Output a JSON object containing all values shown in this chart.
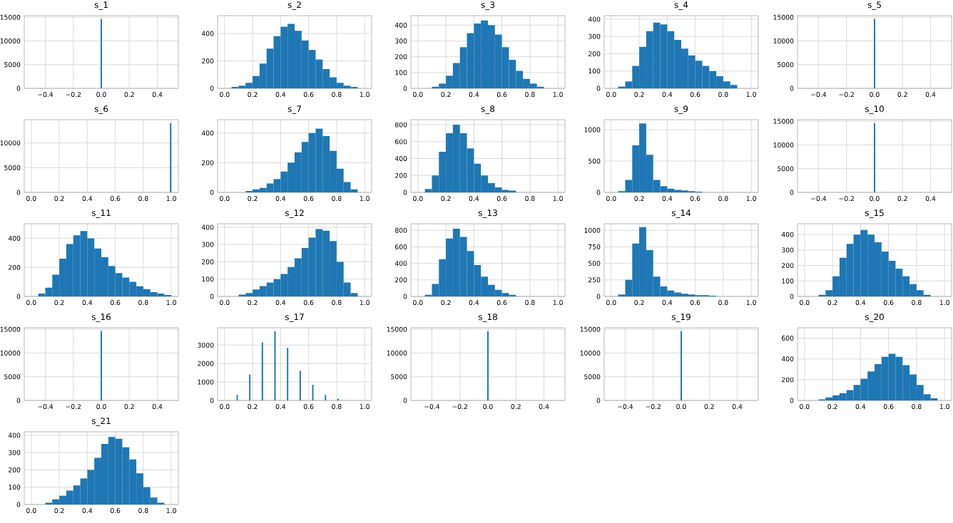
{
  "chart_data": [
    {
      "type": "histogram",
      "title": "s_1",
      "bins": [
        -0.005,
        0.005
      ],
      "values": [
        14600
      ],
      "color": "#1f77b4",
      "xlim": [
        -0.55,
        0.55
      ],
      "xticks": [
        {
          "value": -0.4,
          "label": "−0.4"
        },
        {
          "value": -0.2,
          "label": "−0.2"
        },
        {
          "value": 0,
          "label": "0.0"
        },
        {
          "value": 0.2,
          "label": "0.2"
        },
        {
          "value": 0.4,
          "label": "0.4"
        }
      ],
      "ylim": [
        0,
        15330
      ],
      "yticks": [
        0,
        5000,
        10000,
        15000
      ],
      "grid": true
    },
    {
      "type": "histogram",
      "title": "s_2",
      "bins": [
        0,
        0.05,
        0.1,
        0.15,
        0.2,
        0.25,
        0.3,
        0.35,
        0.4,
        0.45,
        0.5,
        0.55,
        0.6,
        0.65,
        0.7,
        0.75,
        0.8,
        0.85,
        0.9,
        0.95,
        1
      ],
      "values": [
        0,
        10,
        20,
        40,
        90,
        180,
        290,
        380,
        450,
        470,
        420,
        350,
        280,
        210,
        140,
        80,
        40,
        20,
        10,
        0
      ],
      "color": "#1f77b4",
      "xlim": [
        -0.05,
        1.05
      ],
      "xticks": [
        {
          "value": 0,
          "label": "0.0"
        },
        {
          "value": 0.2,
          "label": "0.2"
        },
        {
          "value": 0.4,
          "label": "0.4"
        },
        {
          "value": 0.6,
          "label": "0.6"
        },
        {
          "value": 0.8,
          "label": "0.8"
        },
        {
          "value": 1,
          "label": "1.0"
        }
      ],
      "ylim": [
        0,
        530
      ],
      "yticks": [
        0,
        200,
        400
      ],
      "grid": true
    },
    {
      "type": "histogram",
      "title": "s_3",
      "bins": [
        0,
        0.05,
        0.1,
        0.15,
        0.2,
        0.25,
        0.3,
        0.35,
        0.4,
        0.45,
        0.5,
        0.55,
        0.6,
        0.65,
        0.7,
        0.75,
        0.8,
        0.85,
        0.9,
        0.95,
        1
      ],
      "values": [
        0,
        0,
        10,
        30,
        80,
        160,
        260,
        350,
        410,
        430,
        400,
        340,
        260,
        180,
        110,
        60,
        30,
        10,
        0,
        0
      ],
      "color": "#1f77b4",
      "xlim": [
        -0.05,
        1.05
      ],
      "xticks": [
        {
          "value": 0,
          "label": "0.0"
        },
        {
          "value": 0.2,
          "label": "0.2"
        },
        {
          "value": 0.4,
          "label": "0.4"
        },
        {
          "value": 0.6,
          "label": "0.6"
        },
        {
          "value": 0.8,
          "label": "0.8"
        },
        {
          "value": 1,
          "label": "1.0"
        }
      ],
      "ylim": [
        0,
        460
      ],
      "yticks": [
        0,
        100,
        200,
        300,
        400
      ],
      "grid": true
    },
    {
      "type": "histogram",
      "title": "s_4",
      "bins": [
        0,
        0.05,
        0.1,
        0.15,
        0.2,
        0.25,
        0.3,
        0.35,
        0.4,
        0.45,
        0.5,
        0.55,
        0.6,
        0.65,
        0.7,
        0.75,
        0.8,
        0.85,
        0.9,
        0.95,
        1
      ],
      "values": [
        0,
        10,
        40,
        130,
        240,
        330,
        380,
        370,
        330,
        280,
        230,
        190,
        160,
        130,
        100,
        70,
        40,
        20,
        0,
        0
      ],
      "color": "#1f77b4",
      "xlim": [
        -0.05,
        1.05
      ],
      "xticks": [
        {
          "value": 0,
          "label": "0.0"
        },
        {
          "value": 0.2,
          "label": "0.2"
        },
        {
          "value": 0.4,
          "label": "0.4"
        },
        {
          "value": 0.6,
          "label": "0.6"
        },
        {
          "value": 0.8,
          "label": "0.8"
        },
        {
          "value": 1,
          "label": "1.0"
        }
      ],
      "ylim": [
        0,
        420
      ],
      "yticks": [
        0,
        100,
        200,
        300,
        400
      ],
      "grid": true
    },
    {
      "type": "histogram",
      "title": "s_5",
      "bins": [
        -0.005,
        0.005
      ],
      "values": [
        14600
      ],
      "color": "#1f77b4",
      "xlim": [
        -0.55,
        0.55
      ],
      "xticks": [
        {
          "value": -0.4,
          "label": "−0.4"
        },
        {
          "value": -0.2,
          "label": "−0.2"
        },
        {
          "value": 0,
          "label": "0.0"
        },
        {
          "value": 0.2,
          "label": "0.2"
        },
        {
          "value": 0.4,
          "label": "0.4"
        }
      ],
      "ylim": [
        0,
        15330
      ],
      "yticks": [
        0,
        5000,
        10000,
        15000
      ],
      "grid": true
    },
    {
      "type": "histogram",
      "title": "s_6",
      "bins": [
        0.99,
        1
      ],
      "values": [
        14000
      ],
      "color": "#1f77b4",
      "xlim": [
        -0.05,
        1.05
      ],
      "xticks": [
        {
          "value": 0,
          "label": "0.0"
        },
        {
          "value": 0.2,
          "label": "0.2"
        },
        {
          "value": 0.4,
          "label": "0.4"
        },
        {
          "value": 0.6,
          "label": "0.6"
        },
        {
          "value": 0.8,
          "label": "0.8"
        },
        {
          "value": 1,
          "label": "1.0"
        }
      ],
      "ylim": [
        0,
        14700
      ],
      "yticks": [
        0,
        5000,
        10000
      ],
      "grid": true
    },
    {
      "type": "histogram",
      "title": "s_7",
      "bins": [
        0,
        0.05,
        0.1,
        0.15,
        0.2,
        0.25,
        0.3,
        0.35,
        0.4,
        0.45,
        0.5,
        0.55,
        0.6,
        0.65,
        0.7,
        0.75,
        0.8,
        0.85,
        0.9,
        0.95,
        1
      ],
      "values": [
        0,
        0,
        0,
        10,
        20,
        30,
        60,
        90,
        140,
        200,
        270,
        340,
        400,
        430,
        380,
        280,
        160,
        70,
        20,
        0
      ],
      "color": "#1f77b4",
      "xlim": [
        -0.05,
        1.05
      ],
      "xticks": [
        {
          "value": 0,
          "label": "0.0"
        },
        {
          "value": 0.2,
          "label": "0.2"
        },
        {
          "value": 0.4,
          "label": "0.4"
        },
        {
          "value": 0.6,
          "label": "0.6"
        },
        {
          "value": 0.8,
          "label": "0.8"
        },
        {
          "value": 1,
          "label": "1.0"
        }
      ],
      "ylim": [
        0,
        490
      ],
      "yticks": [
        0,
        200,
        400
      ],
      "grid": true
    },
    {
      "type": "histogram",
      "title": "s_8",
      "bins": [
        0,
        0.05,
        0.1,
        0.15,
        0.2,
        0.25,
        0.3,
        0.35,
        0.4,
        0.45,
        0.5,
        0.55,
        0.6,
        0.65,
        0.7,
        0.75,
        0.8,
        0.85,
        0.9,
        0.95,
        1
      ],
      "values": [
        0,
        40,
        200,
        480,
        700,
        800,
        700,
        520,
        340,
        200,
        110,
        60,
        30,
        20,
        0,
        0,
        0,
        0,
        0,
        0
      ],
      "color": "#1f77b4",
      "xlim": [
        -0.05,
        1.05
      ],
      "xticks": [
        {
          "value": 0,
          "label": "0.0"
        },
        {
          "value": 0.2,
          "label": "0.2"
        },
        {
          "value": 0.4,
          "label": "0.4"
        },
        {
          "value": 0.6,
          "label": "0.6"
        },
        {
          "value": 0.8,
          "label": "0.8"
        },
        {
          "value": 1,
          "label": "1.0"
        }
      ],
      "ylim": [
        0,
        860
      ],
      "yticks": [
        0,
        200,
        400,
        600,
        800
      ],
      "grid": true
    },
    {
      "type": "histogram",
      "title": "s_9",
      "bins": [
        0,
        0.05,
        0.1,
        0.15,
        0.2,
        0.25,
        0.3,
        0.35,
        0.4,
        0.45,
        0.5,
        0.55,
        0.6,
        0.65,
        0.7,
        0.75,
        0.8,
        0.85,
        0.9,
        0.95,
        1
      ],
      "values": [
        0,
        20,
        200,
        750,
        1100,
        600,
        200,
        100,
        60,
        40,
        30,
        20,
        10,
        0,
        0,
        0,
        0,
        0,
        0,
        0
      ],
      "color": "#1f77b4",
      "xlim": [
        -0.05,
        1.05
      ],
      "xticks": [
        {
          "value": 0,
          "label": "0.0"
        },
        {
          "value": 0.2,
          "label": "0.2"
        },
        {
          "value": 0.4,
          "label": "0.4"
        },
        {
          "value": 0.6,
          "label": "0.6"
        },
        {
          "value": 0.8,
          "label": "0.8"
        },
        {
          "value": 1,
          "label": "1.0"
        }
      ],
      "ylim": [
        0,
        1160
      ],
      "yticks": [
        0,
        500,
        1000
      ],
      "grid": true
    },
    {
      "type": "histogram",
      "title": "s_10",
      "bins": [
        -0.005,
        0.005
      ],
      "values": [
        14600
      ],
      "color": "#1f77b4",
      "xlim": [
        -0.55,
        0.55
      ],
      "xticks": [
        {
          "value": -0.4,
          "label": "−0.4"
        },
        {
          "value": -0.2,
          "label": "−0.2"
        },
        {
          "value": 0,
          "label": "0.0"
        },
        {
          "value": 0.2,
          "label": "0.2"
        },
        {
          "value": 0.4,
          "label": "0.4"
        }
      ],
      "ylim": [
        0,
        15330
      ],
      "yticks": [
        0,
        5000,
        10000,
        15000
      ],
      "grid": true
    },
    {
      "type": "histogram",
      "title": "s_11",
      "bins": [
        0,
        0.05,
        0.1,
        0.15,
        0.2,
        0.25,
        0.3,
        0.35,
        0.4,
        0.45,
        0.5,
        0.55,
        0.6,
        0.65,
        0.7,
        0.75,
        0.8,
        0.85,
        0.9,
        0.95,
        1
      ],
      "values": [
        0,
        20,
        60,
        150,
        260,
        360,
        420,
        450,
        400,
        330,
        270,
        210,
        160,
        130,
        100,
        70,
        50,
        30,
        20,
        10
      ],
      "color": "#1f77b4",
      "xlim": [
        -0.05,
        1.05
      ],
      "xticks": [
        {
          "value": 0,
          "label": "0.0"
        },
        {
          "value": 0.2,
          "label": "0.2"
        },
        {
          "value": 0.4,
          "label": "0.4"
        },
        {
          "value": 0.6,
          "label": "0.6"
        },
        {
          "value": 0.8,
          "label": "0.8"
        },
        {
          "value": 1,
          "label": "1.0"
        }
      ],
      "ylim": [
        0,
        500
      ],
      "yticks": [
        0,
        200,
        400
      ],
      "grid": true
    },
    {
      "type": "histogram",
      "title": "s_12",
      "bins": [
        0,
        0.05,
        0.1,
        0.15,
        0.2,
        0.25,
        0.3,
        0.35,
        0.4,
        0.45,
        0.5,
        0.55,
        0.6,
        0.65,
        0.7,
        0.75,
        0.8,
        0.85,
        0.9,
        0.95,
        1
      ],
      "values": [
        0,
        0,
        10,
        20,
        40,
        60,
        80,
        100,
        130,
        170,
        220,
        280,
        340,
        390,
        380,
        320,
        200,
        80,
        20,
        0
      ],
      "color": "#1f77b4",
      "xlim": [
        -0.05,
        1.05
      ],
      "xticks": [
        {
          "value": 0,
          "label": "0.0"
        },
        {
          "value": 0.2,
          "label": "0.2"
        },
        {
          "value": 0.4,
          "label": "0.4"
        },
        {
          "value": 0.6,
          "label": "0.6"
        },
        {
          "value": 0.8,
          "label": "0.8"
        },
        {
          "value": 1,
          "label": "1.0"
        }
      ],
      "ylim": [
        0,
        420
      ],
      "yticks": [
        0,
        100,
        200,
        300,
        400
      ],
      "grid": true
    },
    {
      "type": "histogram",
      "title": "s_13",
      "bins": [
        0,
        0.05,
        0.1,
        0.15,
        0.2,
        0.25,
        0.3,
        0.35,
        0.4,
        0.45,
        0.5,
        0.55,
        0.6,
        0.65,
        0.7,
        0.75,
        0.8,
        0.85,
        0.9,
        0.95,
        1
      ],
      "values": [
        0,
        20,
        150,
        450,
        700,
        820,
        720,
        550,
        380,
        240,
        140,
        80,
        40,
        20,
        0,
        0,
        0,
        0,
        0,
        0
      ],
      "color": "#1f77b4",
      "xlim": [
        -0.05,
        1.05
      ],
      "xticks": [
        {
          "value": 0,
          "label": "0.0"
        },
        {
          "value": 0.2,
          "label": "0.2"
        },
        {
          "value": 0.4,
          "label": "0.4"
        },
        {
          "value": 0.6,
          "label": "0.6"
        },
        {
          "value": 0.8,
          "label": "0.8"
        },
        {
          "value": 1,
          "label": "1.0"
        }
      ],
      "ylim": [
        0,
        880
      ],
      "yticks": [
        0,
        200,
        400,
        600,
        800
      ],
      "grid": true
    },
    {
      "type": "histogram",
      "title": "s_14",
      "bins": [
        0,
        0.05,
        0.1,
        0.15,
        0.2,
        0.25,
        0.3,
        0.35,
        0.4,
        0.45,
        0.5,
        0.55,
        0.6,
        0.65,
        0.7,
        0.75,
        0.8,
        0.85,
        0.9,
        0.95,
        1
      ],
      "values": [
        0,
        30,
        250,
        800,
        1050,
        700,
        300,
        150,
        90,
        60,
        40,
        30,
        20,
        20,
        10,
        0,
        0,
        0,
        0,
        0
      ],
      "color": "#1f77b4",
      "xlim": [
        -0.05,
        1.05
      ],
      "xticks": [
        {
          "value": 0,
          "label": "0.0"
        },
        {
          "value": 0.2,
          "label": "0.2"
        },
        {
          "value": 0.4,
          "label": "0.4"
        },
        {
          "value": 0.6,
          "label": "0.6"
        },
        {
          "value": 0.8,
          "label": "0.8"
        },
        {
          "value": 1,
          "label": "1.0"
        }
      ],
      "ylim": [
        0,
        1100
      ],
      "yticks": [
        0,
        250,
        500,
        750,
        1000
      ],
      "grid": true
    },
    {
      "type": "histogram",
      "title": "s_15",
      "bins": [
        0,
        0.05,
        0.1,
        0.15,
        0.2,
        0.25,
        0.3,
        0.35,
        0.4,
        0.45,
        0.5,
        0.55,
        0.6,
        0.65,
        0.7,
        0.75,
        0.8,
        0.85,
        0.9,
        0.95,
        1
      ],
      "values": [
        0,
        0,
        10,
        40,
        130,
        250,
        340,
        400,
        430,
        400,
        350,
        290,
        230,
        180,
        130,
        80,
        40,
        10,
        0,
        0
      ],
      "color": "#1f77b4",
      "xlim": [
        -0.05,
        1.05
      ],
      "xticks": [
        {
          "value": 0,
          "label": "0.0"
        },
        {
          "value": 0.2,
          "label": "0.2"
        },
        {
          "value": 0.4,
          "label": "0.4"
        },
        {
          "value": 0.6,
          "label": "0.6"
        },
        {
          "value": 0.8,
          "label": "0.8"
        },
        {
          "value": 1,
          "label": "1.0"
        }
      ],
      "ylim": [
        0,
        470
      ],
      "yticks": [
        0,
        100,
        200,
        300,
        400
      ],
      "grid": true
    },
    {
      "type": "histogram",
      "title": "s_16",
      "bins": [
        -0.005,
        0.005
      ],
      "values": [
        14600
      ],
      "color": "#1f77b4",
      "xlim": [
        -0.55,
        0.55
      ],
      "xticks": [
        {
          "value": -0.4,
          "label": "−0.4"
        },
        {
          "value": -0.2,
          "label": "−0.2"
        },
        {
          "value": 0,
          "label": "0.0"
        },
        {
          "value": 0.2,
          "label": "0.2"
        },
        {
          "value": 0.4,
          "label": "0.4"
        }
      ],
      "ylim": [
        0,
        15330
      ],
      "yticks": [
        0,
        5000,
        10000,
        15000
      ],
      "grid": true
    },
    {
      "type": "histogram",
      "title": "s_17",
      "bins": [
        0.085,
        0.095,
        0.175,
        0.185,
        0.265,
        0.275,
        0.355,
        0.365,
        0.445,
        0.455,
        0.535,
        0.545,
        0.625,
        0.635,
        0.715,
        0.725,
        0.805,
        0.815
      ],
      "values": [
        300,
        0,
        1400,
        0,
        3150,
        0,
        3750,
        0,
        2850,
        0,
        1600,
        0,
        850,
        0,
        300,
        0,
        100
      ],
      "color": "#1f77b4",
      "xlim": [
        -0.05,
        1.05
      ],
      "xticks": [
        {
          "value": 0,
          "label": "0.0"
        },
        {
          "value": 0.2,
          "label": "0.2"
        },
        {
          "value": 0.4,
          "label": "0.4"
        },
        {
          "value": 0.6,
          "label": "0.6"
        },
        {
          "value": 0.8,
          "label": "0.8"
        },
        {
          "value": 1,
          "label": "1.0"
        }
      ],
      "ylim": [
        0,
        3940
      ],
      "yticks": [
        0,
        1000,
        2000,
        3000
      ],
      "grid": true
    },
    {
      "type": "histogram",
      "title": "s_18",
      "bins": [
        -0.005,
        0.005
      ],
      "values": [
        14600
      ],
      "color": "#1f77b4",
      "xlim": [
        -0.55,
        0.55
      ],
      "xticks": [
        {
          "value": -0.4,
          "label": "−0.4"
        },
        {
          "value": -0.2,
          "label": "−0.2"
        },
        {
          "value": 0,
          "label": "0.0"
        },
        {
          "value": 0.2,
          "label": "0.2"
        },
        {
          "value": 0.4,
          "label": "0.4"
        }
      ],
      "ylim": [
        0,
        15330
      ],
      "yticks": [
        0,
        5000,
        10000,
        15000
      ],
      "grid": true
    },
    {
      "type": "histogram",
      "title": "s_19",
      "bins": [
        -0.005,
        0.005
      ],
      "values": [
        14600
      ],
      "color": "#1f77b4",
      "xlim": [
        -0.55,
        0.55
      ],
      "xticks": [
        {
          "value": -0.4,
          "label": "−0.4"
        },
        {
          "value": -0.2,
          "label": "−0.2"
        },
        {
          "value": 0,
          "label": "0.0"
        },
        {
          "value": 0.2,
          "label": "0.2"
        },
        {
          "value": 0.4,
          "label": "0.4"
        }
      ],
      "ylim": [
        0,
        15330
      ],
      "yticks": [
        0,
        5000,
        10000,
        15000
      ],
      "grid": true
    },
    {
      "type": "histogram",
      "title": "s_20",
      "bins": [
        0,
        0.05,
        0.1,
        0.15,
        0.2,
        0.25,
        0.3,
        0.35,
        0.4,
        0.45,
        0.5,
        0.55,
        0.6,
        0.65,
        0.7,
        0.75,
        0.8,
        0.85,
        0.9,
        0.95,
        1
      ],
      "values": [
        0,
        0,
        10,
        30,
        50,
        70,
        100,
        150,
        210,
        280,
        350,
        420,
        450,
        420,
        340,
        250,
        150,
        60,
        20,
        0
      ],
      "color": "#1f77b4",
      "xlim": [
        -0.05,
        1.05
      ],
      "xticks": [
        {
          "value": 0,
          "label": "0.0"
        },
        {
          "value": 0.2,
          "label": "0.2"
        },
        {
          "value": 0.4,
          "label": "0.4"
        },
        {
          "value": 0.6,
          "label": "0.6"
        },
        {
          "value": 0.8,
          "label": "0.8"
        },
        {
          "value": 1,
          "label": "1.0"
        }
      ],
      "ylim": [
        0,
        700
      ],
      "yticks": [
        0,
        200,
        400,
        600
      ],
      "grid": true
    },
    {
      "type": "histogram",
      "title": "s_21",
      "bins": [
        0,
        0.05,
        0.1,
        0.15,
        0.2,
        0.25,
        0.3,
        0.35,
        0.4,
        0.45,
        0.5,
        0.55,
        0.6,
        0.65,
        0.7,
        0.75,
        0.8,
        0.85,
        0.9,
        0.95,
        1
      ],
      "values": [
        0,
        0,
        10,
        30,
        50,
        80,
        110,
        150,
        200,
        270,
        350,
        390,
        380,
        330,
        260,
        180,
        100,
        40,
        10,
        0
      ],
      "color": "#1f77b4",
      "xlim": [
        -0.05,
        1.05
      ],
      "xticks": [
        {
          "value": 0,
          "label": "0.0"
        },
        {
          "value": 0.2,
          "label": "0.2"
        },
        {
          "value": 0.4,
          "label": "0.4"
        },
        {
          "value": 0.6,
          "label": "0.6"
        },
        {
          "value": 0.8,
          "label": "0.8"
        },
        {
          "value": 1,
          "label": "1.0"
        }
      ],
      "ylim": [
        0,
        420
      ],
      "yticks": [
        0,
        100,
        200,
        300,
        400
      ],
      "grid": true
    }
  ]
}
